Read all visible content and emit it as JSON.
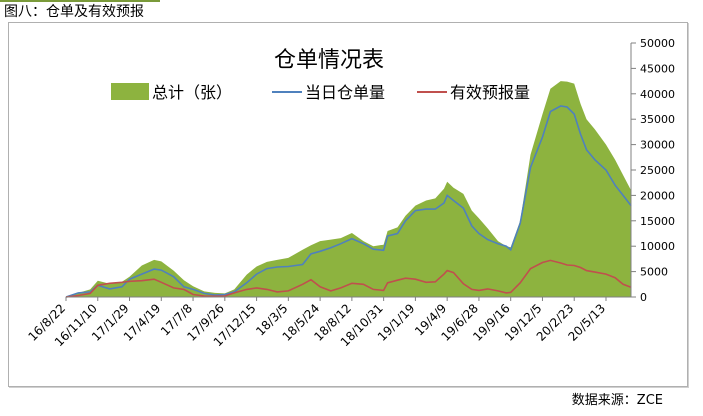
{
  "caption": "图八：仓单及有效预报",
  "source": "数据来源：ZCE",
  "chart_data": {
    "type": "area",
    "title": "仓单情况表",
    "legend_position": "top",
    "grid": false,
    "ylim": [
      0,
      50000
    ],
    "yticks": [
      0,
      5000,
      10000,
      15000,
      20000,
      25000,
      30000,
      35000,
      40000,
      45000,
      50000
    ],
    "xticks": [
      "16/8/22",
      "16/11/10",
      "17/1/29",
      "17/4/19",
      "17/7/8",
      "17/9/26",
      "17/12/15",
      "18/3/5",
      "18/5/24",
      "18/8/12",
      "18/10/31",
      "19/1/19",
      "19/4/9",
      "19/6/28",
      "19/9/16",
      "19/12/5",
      "20/2/23",
      "20/5/13"
    ],
    "x": [
      "16/8/22",
      "16/9/22",
      "16/10/22",
      "16/11/10",
      "16/12/10",
      "17/1/10",
      "17/1/29",
      "17/3/1",
      "17/4/1",
      "17/4/19",
      "17/5/20",
      "17/6/15",
      "17/7/8",
      "17/8/5",
      "17/9/1",
      "17/9/26",
      "17/10/20",
      "17/11/20",
      "17/12/15",
      "18/1/10",
      "18/2/5",
      "18/3/5",
      "18/4/10",
      "18/5/1",
      "18/5/24",
      "18/6/20",
      "18/7/15",
      "18/8/12",
      "18/9/10",
      "18/10/5",
      "18/10/31",
      "18/11/10",
      "18/12/5",
      "18/12/25",
      "19/1/19",
      "19/2/15",
      "19/3/10",
      "19/4/1",
      "19/4/9",
      "19/4/25",
      "19/5/20",
      "19/6/10",
      "19/6/28",
      "19/7/20",
      "19/8/15",
      "19/9/5",
      "19/9/16",
      "19/10/10",
      "19/11/5",
      "19/12/5",
      "19/12/25",
      "20/1/20",
      "20/2/5",
      "20/2/23",
      "20/3/10",
      "20/3/25",
      "20/4/15",
      "20/5/13",
      "20/6/5",
      "20/6/25",
      "20/7/15"
    ],
    "series": [
      {
        "name": "总计（张）",
        "color": "#8db33f",
        "values": [
          0,
          800,
          1500,
          3200,
          2600,
          3000,
          4000,
          6200,
          7300,
          7000,
          5200,
          3300,
          2100,
          1100,
          800,
          700,
          1500,
          4400,
          6000,
          6900,
          7300,
          7700,
          9300,
          10200,
          11000,
          11300,
          11600,
          12600,
          11000,
          10000,
          10300,
          13000,
          13700,
          16000,
          18000,
          19000,
          19400,
          21300,
          22700,
          21500,
          20300,
          17000,
          15500,
          13500,
          11000,
          10000,
          9800,
          15000,
          28000,
          36000,
          41000,
          42500,
          42400,
          42000,
          38000,
          35000,
          33000,
          30000,
          27000,
          24000,
          21000
        ]
      },
      {
        "name": "当日仓单量",
        "color": "#4f81bd",
        "values": [
          0,
          800,
          1000,
          2300,
          1600,
          2000,
          3500,
          4500,
          5500,
          5300,
          4000,
          2000,
          1500,
          700,
          400,
          500,
          1000,
          2800,
          4500,
          5600,
          5900,
          6000,
          6400,
          8500,
          9000,
          9700,
          10500,
          11500,
          10500,
          9400,
          9200,
          12000,
          12500,
          15000,
          17000,
          17300,
          17300,
          18500,
          20000,
          19000,
          17500,
          14000,
          12500,
          11300,
          10500,
          10000,
          9300,
          14500,
          25500,
          31500,
          36500,
          37600,
          37400,
          36000,
          32000,
          29000,
          27000,
          25000,
          22000,
          20000,
          18000
        ]
      },
      {
        "name": "有效预报量",
        "color": "#c0504d",
        "values": [
          0,
          300,
          700,
          2300,
          2700,
          2900,
          3100,
          3200,
          3500,
          2900,
          1800,
          1500,
          500,
          200,
          150,
          200,
          800,
          1500,
          1800,
          1500,
          1000,
          1200,
          2500,
          3400,
          2000,
          1200,
          1800,
          2700,
          2500,
          1500,
          1300,
          2800,
          3300,
          3700,
          3500,
          2900,
          3000,
          4500,
          5200,
          4800,
          2600,
          1500,
          1300,
          1600,
          1200,
          800,
          900,
          2800,
          5600,
          6800,
          7200,
          6700,
          6300,
          6200,
          5800,
          5200,
          4900,
          4500,
          3800,
          2500,
          1900
        ]
      }
    ]
  }
}
